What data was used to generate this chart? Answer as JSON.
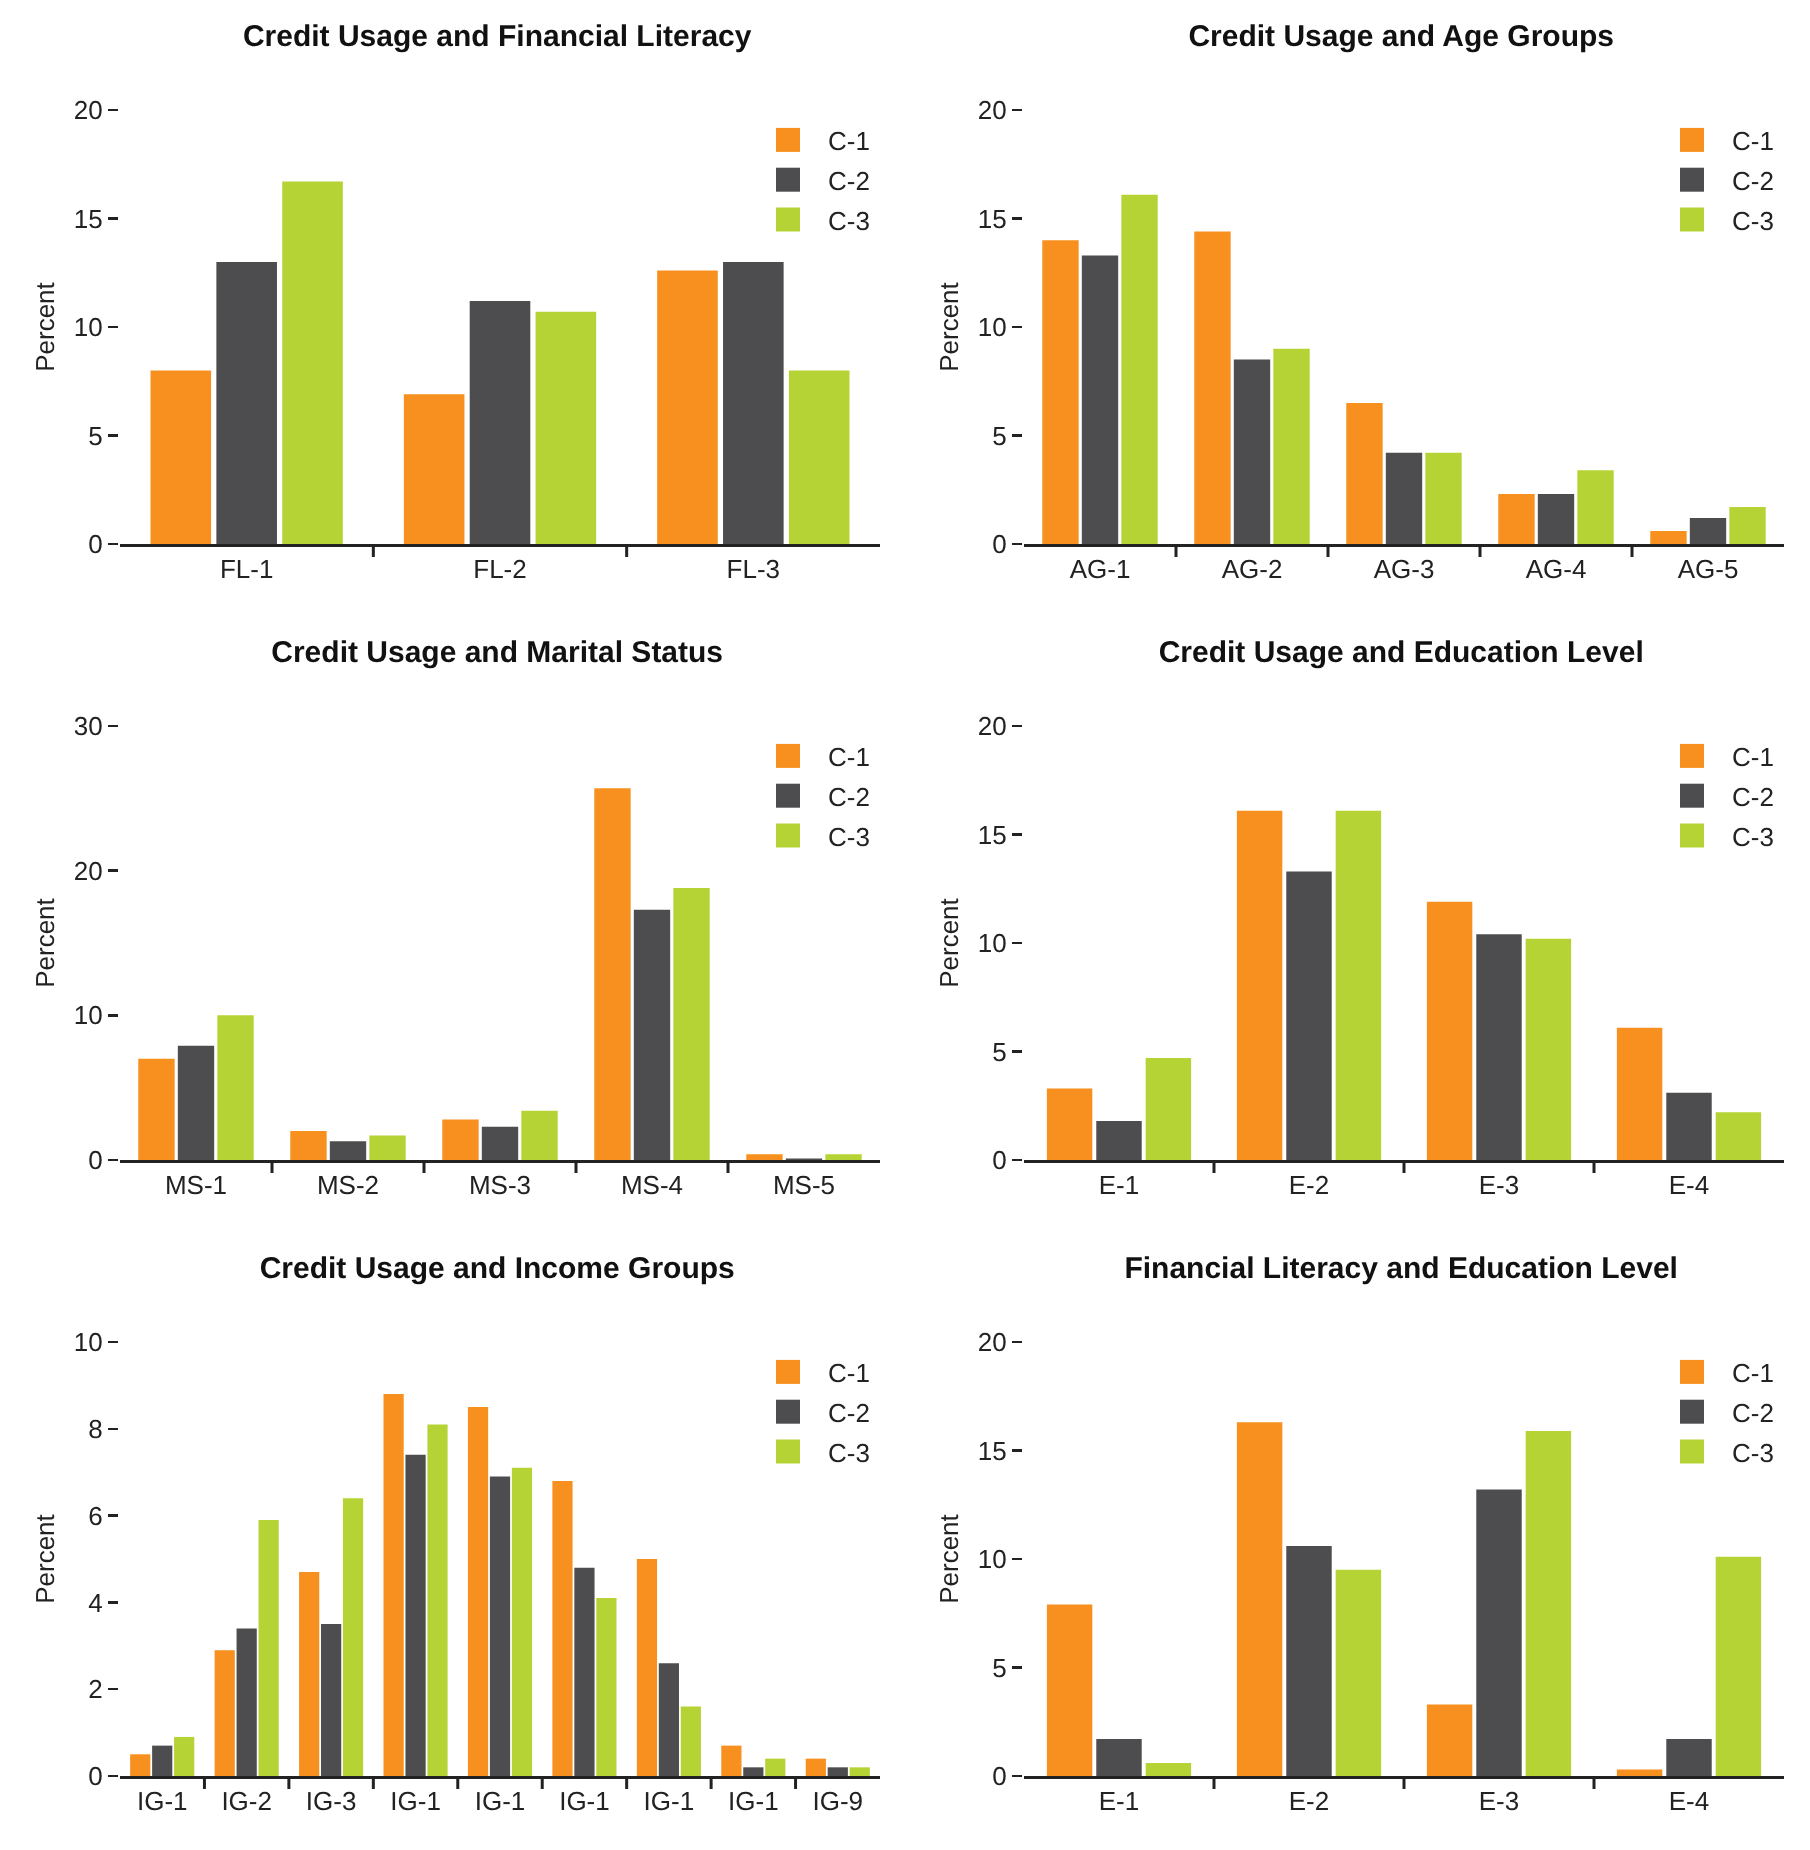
{
  "chart_data": [
    {
      "type": "bar",
      "title": "Credit Usage and Financial Literacy",
      "ylabel": "Percent",
      "categories": [
        "FL-1",
        "FL-2",
        "FL-3"
      ],
      "ylim": [
        0,
        20
      ],
      "yticks": [
        0,
        5,
        10,
        15,
        20
      ],
      "grid": false,
      "legend": "top right",
      "series": [
        {
          "name": "C-1",
          "color": "#f7901e",
          "values": [
            8.0,
            6.9,
            12.6
          ]
        },
        {
          "name": "C-2",
          "color": "#4d4d4f",
          "values": [
            13.0,
            11.2,
            13.0
          ]
        },
        {
          "name": "C-3",
          "color": "#b5d334",
          "values": [
            16.7,
            10.7,
            8.0
          ]
        }
      ]
    },
    {
      "type": "bar",
      "title": "Credit Usage and Age Groups",
      "ylabel": "Percent",
      "categories": [
        "AG-1",
        "AG-2",
        "AG-3",
        "AG-4",
        "AG-5"
      ],
      "ylim": [
        0,
        20
      ],
      "yticks": [
        0,
        5,
        10,
        15,
        20
      ],
      "grid": false,
      "legend": "top right",
      "series": [
        {
          "name": "C-1",
          "color": "#f7901e",
          "values": [
            14.0,
            14.4,
            6.5,
            2.3,
            0.6
          ]
        },
        {
          "name": "C-2",
          "color": "#4d4d4f",
          "values": [
            13.3,
            8.5,
            4.2,
            2.3,
            1.2
          ]
        },
        {
          "name": "C-3",
          "color": "#b5d334",
          "values": [
            16.1,
            9.0,
            4.2,
            3.4,
            1.7
          ]
        }
      ]
    },
    {
      "type": "bar",
      "title": "Credit Usage and Marital Status",
      "ylabel": "Percent",
      "categories": [
        "MS-1",
        "MS-2",
        "MS-3",
        "MS-4",
        "MS-5"
      ],
      "ylim": [
        0,
        30
      ],
      "yticks": [
        0,
        10,
        20,
        30
      ],
      "grid": false,
      "legend": "top right",
      "series": [
        {
          "name": "C-1",
          "color": "#f7901e",
          "values": [
            7.0,
            2.0,
            2.8,
            25.7,
            0.4
          ]
        },
        {
          "name": "C-2",
          "color": "#4d4d4f",
          "values": [
            7.9,
            1.3,
            2.3,
            17.3,
            0.1
          ]
        },
        {
          "name": "C-3",
          "color": "#b5d334",
          "values": [
            10.0,
            1.7,
            3.4,
            18.8,
            0.4
          ]
        }
      ]
    },
    {
      "type": "bar",
      "title": "Credit Usage and Education Level",
      "ylabel": "Percent",
      "categories": [
        "E-1",
        "E-2",
        "E-3",
        "E-4"
      ],
      "ylim": [
        0,
        20
      ],
      "yticks": [
        0,
        5,
        10,
        15,
        20
      ],
      "grid": false,
      "legend": "top right",
      "series": [
        {
          "name": "C-1",
          "color": "#f7901e",
          "values": [
            3.3,
            16.1,
            11.9,
            6.1
          ]
        },
        {
          "name": "C-2",
          "color": "#4d4d4f",
          "values": [
            1.8,
            13.3,
            10.4,
            3.1
          ]
        },
        {
          "name": "C-3",
          "color": "#b5d334",
          "values": [
            4.7,
            16.1,
            10.2,
            2.2
          ]
        }
      ]
    },
    {
      "type": "bar",
      "title": "Credit Usage and Income Groups",
      "ylabel": "Percent",
      "categories": [
        "IG-1",
        "IG-2",
        "IG-3",
        "IG-1",
        "IG-1",
        "IG-1",
        "IG-1",
        "IG-1",
        "IG-9"
      ],
      "ylim": [
        0,
        10
      ],
      "yticks": [
        0,
        2,
        4,
        6,
        8,
        10
      ],
      "grid": false,
      "legend": "top right",
      "series": [
        {
          "name": "C-1",
          "color": "#f7901e",
          "values": [
            0.5,
            2.9,
            4.7,
            8.8,
            8.5,
            6.8,
            5.0,
            0.7,
            0.4
          ]
        },
        {
          "name": "C-2",
          "color": "#4d4d4f",
          "values": [
            0.7,
            3.4,
            3.5,
            7.4,
            6.9,
            4.8,
            2.6,
            0.2,
            0.2
          ]
        },
        {
          "name": "C-3",
          "color": "#b5d334",
          "values": [
            0.9,
            5.9,
            6.4,
            8.1,
            7.1,
            4.1,
            1.6,
            0.4,
            0.2
          ]
        }
      ]
    },
    {
      "type": "bar",
      "title": "Financial Literacy and Education Level",
      "ylabel": "Percent",
      "categories": [
        "E-1",
        "E-2",
        "E-3",
        "E-4"
      ],
      "ylim": [
        0,
        20
      ],
      "yticks": [
        0,
        5,
        10,
        15,
        20
      ],
      "grid": false,
      "legend": "top right",
      "series": [
        {
          "name": "C-1",
          "color": "#f7901e",
          "values": [
            7.9,
            16.3,
            3.3,
            0.3
          ]
        },
        {
          "name": "C-2",
          "color": "#4d4d4f",
          "values": [
            1.7,
            10.6,
            13.2,
            1.7
          ]
        },
        {
          "name": "C-3",
          "color": "#b5d334",
          "values": [
            0.6,
            9.5,
            15.9,
            10.1
          ]
        }
      ]
    }
  ]
}
